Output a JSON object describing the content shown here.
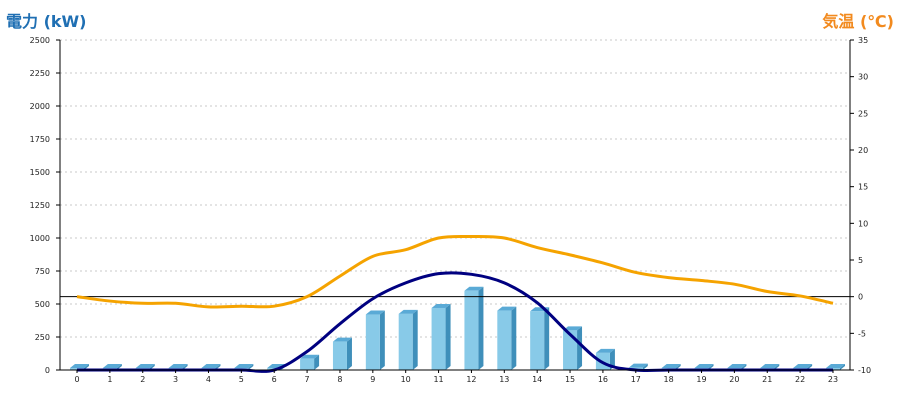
{
  "chart_data": {
    "type": "bar",
    "categories": [
      "0",
      "1",
      "2",
      "3",
      "4",
      "5",
      "6",
      "7",
      "8",
      "9",
      "10",
      "11",
      "12",
      "13",
      "14",
      "15",
      "16",
      "17",
      "18",
      "19",
      "20",
      "21",
      "22",
      "23"
    ],
    "y_left": {
      "label": "電力 (kW)",
      "range": [
        0,
        2500
      ],
      "ticks": [
        0,
        250,
        500,
        750,
        1000,
        1250,
        1500,
        1750,
        2000,
        2250,
        2500
      ]
    },
    "y_right": {
      "label": "気温 (℃)",
      "range": [
        -10,
        35
      ],
      "ticks": [
        -10,
        -5,
        0,
        5,
        10,
        15,
        20,
        25,
        30,
        35
      ]
    },
    "bars": {
      "axis": "left",
      "values": [
        15,
        15,
        15,
        15,
        15,
        15,
        15,
        85,
        215,
        420,
        425,
        470,
        600,
        450,
        445,
        300,
        130,
        18,
        15,
        15,
        15,
        15,
        15,
        15
      ]
    },
    "curve": {
      "axis": "left",
      "values": [
        0,
        0,
        0,
        0,
        0,
        0,
        0,
        140,
        350,
        540,
        660,
        730,
        725,
        660,
        510,
        270,
        55,
        0,
        0,
        0,
        0,
        0,
        0,
        0
      ]
    },
    "temperature": {
      "axis": "right",
      "values": [
        0,
        -0.6,
        -0.9,
        -0.9,
        -1.4,
        -1.3,
        -1.3,
        0,
        2.8,
        5.5,
        6.4,
        8,
        8.2,
        8,
        6.7,
        5.7,
        4.6,
        3.3,
        2.6,
        2.2,
        1.7,
        0.7,
        0.1,
        -0.9
      ]
    },
    "reference_line": {
      "axis": "right",
      "value": 0
    },
    "colors": {
      "bar": "#88cae8",
      "bar_side": "#3f8fba",
      "bar_top": "#5aaad6",
      "curve": "#000080",
      "temperature": "#f5a300",
      "reference_line": "#000000",
      "grid": "#c8c8c8",
      "left_title": "#1f6fb3",
      "right_title": "#f28a1e"
    },
    "grid": true
  }
}
